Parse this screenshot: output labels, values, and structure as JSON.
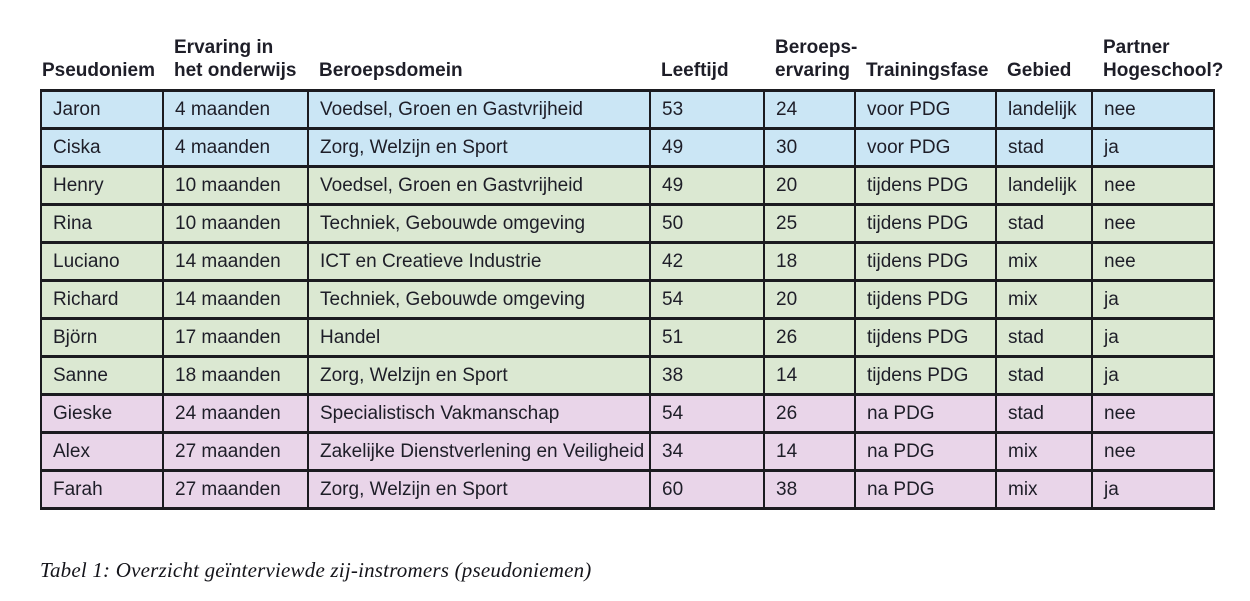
{
  "table": {
    "columns": [
      {
        "key": "pseudoniem",
        "label": "Pseudoniem"
      },
      {
        "key": "ervaring_onderwijs",
        "label": "Ervaring in\nhet onderwijs"
      },
      {
        "key": "beroepsdomein",
        "label": "Beroepsdomein"
      },
      {
        "key": "leeftijd",
        "label": "Leeftijd"
      },
      {
        "key": "beroepservaring",
        "label": "Beroeps-\nervaring"
      },
      {
        "key": "trainingsfase",
        "label": "Trainingsfase"
      },
      {
        "key": "gebied",
        "label": "Gebied"
      },
      {
        "key": "partner_hogeschool",
        "label": "Partner\nHogeschool?"
      }
    ],
    "phase_colors": {
      "voor": "#cbe6f5",
      "tijdens": "#dbe8d2",
      "na": "#e9d5e9"
    },
    "rows": [
      {
        "phase": "voor",
        "pseudoniem": "Jaron",
        "ervaring_onderwijs": "4 maanden",
        "beroepsdomein": "Voedsel, Groen en Gastvrijheid",
        "leeftijd": "53",
        "beroepservaring": "24",
        "trainingsfase": "voor PDG",
        "gebied": "landelijk",
        "partner_hogeschool": "nee"
      },
      {
        "phase": "voor",
        "pseudoniem": "Ciska",
        "ervaring_onderwijs": "4 maanden",
        "beroepsdomein": "Zorg, Welzijn en Sport",
        "leeftijd": "49",
        "beroepservaring": "30",
        "trainingsfase": "voor PDG",
        "gebied": "stad",
        "partner_hogeschool": "ja"
      },
      {
        "phase": "tijdens",
        "pseudoniem": "Henry",
        "ervaring_onderwijs": "10 maanden",
        "beroepsdomein": "Voedsel, Groen en Gastvrijheid",
        "leeftijd": "49",
        "beroepservaring": "20",
        "trainingsfase": "tijdens PDG",
        "gebied": "landelijk",
        "partner_hogeschool": "nee"
      },
      {
        "phase": "tijdens",
        "pseudoniem": "Rina",
        "ervaring_onderwijs": "10 maanden",
        "beroepsdomein": "Techniek, Gebouwde omgeving",
        "leeftijd": "50",
        "beroepservaring": "25",
        "trainingsfase": "tijdens PDG",
        "gebied": "stad",
        "partner_hogeschool": "nee"
      },
      {
        "phase": "tijdens",
        "pseudoniem": "Luciano",
        "ervaring_onderwijs": "14 maanden",
        "beroepsdomein": "ICT en Creatieve Industrie",
        "leeftijd": "42",
        "beroepservaring": "18",
        "trainingsfase": "tijdens PDG",
        "gebied": "mix",
        "partner_hogeschool": "nee"
      },
      {
        "phase": "tijdens",
        "pseudoniem": "Richard",
        "ervaring_onderwijs": "14 maanden",
        "beroepsdomein": "Techniek, Gebouwde omgeving",
        "leeftijd": "54",
        "beroepservaring": "20",
        "trainingsfase": "tijdens PDG",
        "gebied": "mix",
        "partner_hogeschool": "ja"
      },
      {
        "phase": "tijdens",
        "pseudoniem": "Björn",
        "ervaring_onderwijs": "17 maanden",
        "beroepsdomein": "Handel",
        "leeftijd": "51",
        "beroepservaring": "26",
        "trainingsfase": "tijdens PDG",
        "gebied": "stad",
        "partner_hogeschool": "ja"
      },
      {
        "phase": "tijdens",
        "pseudoniem": "Sanne",
        "ervaring_onderwijs": "18 maanden",
        "beroepsdomein": "Zorg, Welzijn en Sport",
        "leeftijd": "38",
        "beroepservaring": "14",
        "trainingsfase": "tijdens PDG",
        "gebied": "stad",
        "partner_hogeschool": "ja"
      },
      {
        "phase": "na",
        "pseudoniem": "Gieske",
        "ervaring_onderwijs": "24 maanden",
        "beroepsdomein": "Specialistisch Vakmanschap",
        "leeftijd": "54",
        "beroepservaring": "26",
        "trainingsfase": "na PDG",
        "gebied": "stad",
        "partner_hogeschool": "nee"
      },
      {
        "phase": "na",
        "pseudoniem": "Alex",
        "ervaring_onderwijs": "27 maanden",
        "beroepsdomein": "Zakelijke Dienstverlening en Veiligheid",
        "leeftijd": "34",
        "beroepservaring": "14",
        "trainingsfase": "na PDG",
        "gebied": "mix",
        "partner_hogeschool": "nee"
      },
      {
        "phase": "na",
        "pseudoniem": "Farah",
        "ervaring_onderwijs": "27 maanden",
        "beroepsdomein": "Zorg, Welzijn en Sport",
        "leeftijd": "60",
        "beroepservaring": "38",
        "trainingsfase": "na PDG",
        "gebied": "mix",
        "partner_hogeschool": "ja"
      }
    ]
  },
  "caption": "Tabel 1: Overzicht geïnterviewde zij-instromers (pseudoniemen)"
}
